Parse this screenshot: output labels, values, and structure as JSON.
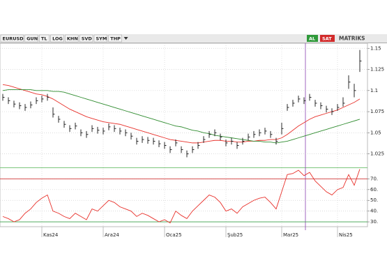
{
  "toolbar": {
    "buttons": [
      "EURUSD",
      "GUN",
      "TL",
      "LOG",
      "KHN",
      "SVD",
      "SYM",
      "THP"
    ],
    "actions": [
      "AL",
      "SAT"
    ],
    "brand": "MATRIKS"
  },
  "chart_data": [
    {
      "type": "ohlc",
      "categories": [
        null,
        null,
        null,
        null,
        null,
        null,
        null,
        "Kas24",
        null,
        null,
        null,
        null,
        null,
        null,
        null,
        null,
        null,
        null,
        "Ara24",
        null,
        null,
        null,
        null,
        null,
        null,
        null,
        null,
        null,
        null,
        "Oca25",
        null,
        null,
        null,
        null,
        null,
        null,
        null,
        null,
        null,
        null,
        "Şub25",
        null,
        null,
        null,
        null,
        null,
        null,
        null,
        null,
        null,
        "Mar25",
        null,
        null,
        null,
        null,
        null,
        null,
        null,
        null,
        null,
        "Nis25",
        null,
        null,
        null,
        null
      ],
      "high": [
        1.096,
        1.092,
        1.088,
        1.086,
        1.084,
        1.087,
        1.092,
        1.094,
        1.096,
        1.08,
        1.07,
        1.064,
        1.059,
        1.062,
        1.054,
        1.052,
        1.059,
        1.057,
        1.056,
        1.061,
        1.059,
        1.056,
        1.054,
        1.05,
        1.044,
        1.046,
        1.045,
        1.044,
        1.041,
        1.039,
        1.034,
        1.042,
        1.034,
        1.029,
        1.034,
        1.039,
        1.046,
        1.052,
        1.054,
        1.049,
        1.042,
        1.044,
        1.039,
        1.044,
        1.049,
        1.052,
        1.054,
        1.056,
        1.052,
        1.044,
        1.062,
        1.084,
        1.089,
        1.094,
        1.092,
        1.096,
        1.089,
        1.086,
        1.082,
        1.079,
        1.084,
        1.092,
        1.118,
        1.108,
        1.148
      ],
      "low": [
        1.088,
        1.084,
        1.08,
        1.078,
        1.076,
        1.079,
        1.084,
        1.086,
        1.088,
        1.068,
        1.062,
        1.056,
        1.051,
        1.054,
        1.046,
        1.044,
        1.051,
        1.049,
        1.048,
        1.053,
        1.051,
        1.048,
        1.046,
        1.042,
        1.036,
        1.038,
        1.037,
        1.036,
        1.033,
        1.031,
        1.026,
        1.034,
        1.026,
        1.021,
        1.026,
        1.031,
        1.038,
        1.044,
        1.046,
        1.041,
        1.034,
        1.036,
        1.031,
        1.036,
        1.041,
        1.044,
        1.046,
        1.048,
        1.044,
        1.036,
        1.048,
        1.076,
        1.081,
        1.086,
        1.084,
        1.088,
        1.081,
        1.078,
        1.074,
        1.071,
        1.076,
        1.081,
        1.102,
        1.092,
        1.122
      ],
      "close": [
        1.092,
        1.088,
        1.084,
        1.082,
        1.08,
        1.083,
        1.088,
        1.09,
        1.092,
        1.072,
        1.066,
        1.06,
        1.055,
        1.058,
        1.05,
        1.048,
        1.055,
        1.053,
        1.052,
        1.057,
        1.055,
        1.052,
        1.05,
        1.046,
        1.04,
        1.042,
        1.041,
        1.04,
        1.037,
        1.035,
        1.03,
        1.038,
        1.03,
        1.025,
        1.03,
        1.035,
        1.042,
        1.048,
        1.05,
        1.045,
        1.038,
        1.04,
        1.035,
        1.04,
        1.045,
        1.048,
        1.05,
        1.052,
        1.048,
        1.04,
        1.055,
        1.08,
        1.085,
        1.09,
        1.088,
        1.092,
        1.085,
        1.082,
        1.078,
        1.075,
        1.08,
        1.085,
        1.11,
        1.1,
        1.135
      ],
      "color": "#111111",
      "series": [
        {
          "color": "#e8302a",
          "values": [
            1.107,
            1.106,
            1.104,
            1.102,
            1.1,
            1.098,
            1.096,
            1.095,
            1.093,
            1.09,
            1.086,
            1.082,
            1.078,
            1.075,
            1.072,
            1.069,
            1.067,
            1.065,
            1.063,
            1.062,
            1.061,
            1.06,
            1.058,
            1.056,
            1.054,
            1.052,
            1.05,
            1.048,
            1.046,
            1.044,
            1.042,
            1.041,
            1.04,
            1.039,
            1.038,
            1.038,
            1.039,
            1.04,
            1.041,
            1.041,
            1.04,
            1.04,
            1.039,
            1.039,
            1.04,
            1.04,
            1.041,
            1.041,
            1.042,
            1.042,
            1.044,
            1.048,
            1.053,
            1.058,
            1.062,
            1.066,
            1.069,
            1.071,
            1.073,
            1.075,
            1.077,
            1.08,
            1.083,
            1.086,
            1.09
          ]
        },
        {
          "color": "#2e8b2e",
          "values": [
            1.1,
            1.101,
            1.101,
            1.101,
            1.101,
            1.101,
            1.1,
            1.1,
            1.1,
            1.099,
            1.099,
            1.098,
            1.096,
            1.094,
            1.092,
            1.09,
            1.088,
            1.086,
            1.084,
            1.082,
            1.08,
            1.078,
            1.076,
            1.074,
            1.072,
            1.07,
            1.068,
            1.066,
            1.064,
            1.062,
            1.06,
            1.058,
            1.057,
            1.055,
            1.053,
            1.052,
            1.05,
            1.049,
            1.047,
            1.046,
            1.045,
            1.044,
            1.043,
            1.042,
            1.041,
            1.04,
            1.04,
            1.039,
            1.039,
            1.038,
            1.039,
            1.04,
            1.042,
            1.044,
            1.046,
            1.048,
            1.05,
            1.052,
            1.054,
            1.056,
            1.058,
            1.06,
            1.062,
            1.064,
            1.066
          ]
        }
      ],
      "ylim": [
        1.009,
        1.156
      ],
      "yticks": [
        1.025,
        1.05,
        1.075,
        1.1,
        1.125,
        1.15
      ],
      "grid": true
    },
    {
      "type": "line",
      "series": [
        {
          "color": "#e8302a",
          "values": [
            35,
            33,
            30,
            32,
            38,
            42,
            48,
            52,
            55,
            40,
            38,
            35,
            33,
            38,
            35,
            32,
            42,
            40,
            45,
            50,
            48,
            44,
            42,
            40,
            35,
            38,
            36,
            33,
            30,
            32,
            29,
            40,
            36,
            33,
            40,
            45,
            50,
            55,
            53,
            48,
            40,
            42,
            38,
            44,
            47,
            50,
            52,
            53,
            48,
            42,
            58,
            74,
            75,
            78,
            73,
            76,
            68,
            63,
            58,
            55,
            60,
            62,
            74,
            64,
            79
          ]
        }
      ],
      "ylim": [
        25.5,
        80
      ],
      "yticks": [
        {
          "value": 30,
          "label": "30."
        },
        {
          "value": 40,
          "label": "40."
        },
        {
          "value": 50,
          "label": "50."
        },
        {
          "value": 60,
          "label": "60."
        },
        {
          "value": 70,
          "label": "70."
        }
      ],
      "levels": [
        {
          "value": 70,
          "color": "#d23a3a"
        },
        {
          "value": 30,
          "color": "#3aa04a"
        }
      ],
      "grid": true
    }
  ]
}
